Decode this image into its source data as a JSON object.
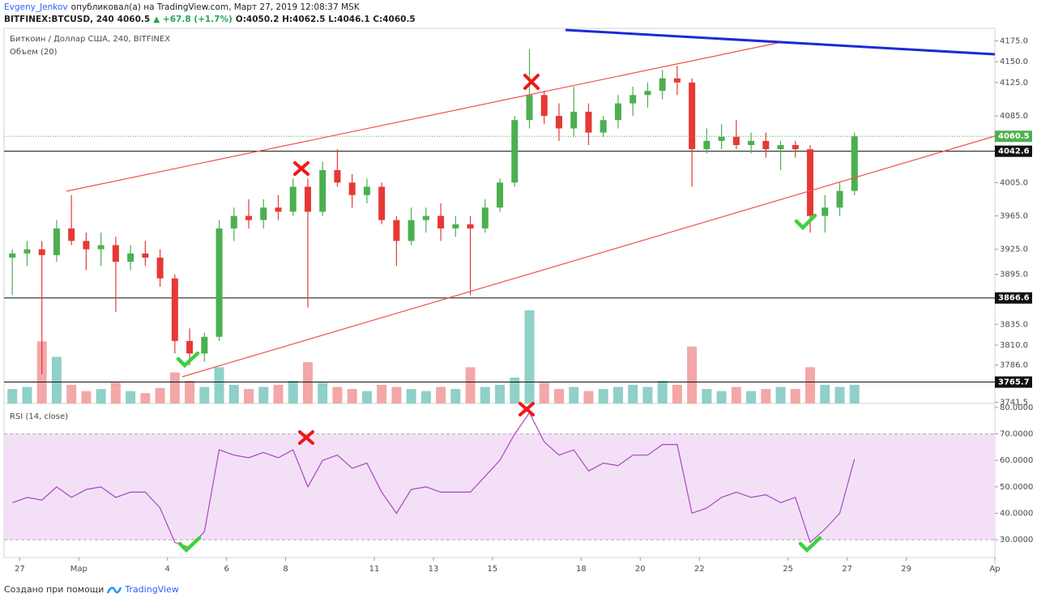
{
  "header": {
    "author": "Evgeny_Jenkov",
    "published": "опубликовал(а) на TradingView.com, Март 27, 2019 12:08:37 MSK",
    "symbol": "BITFINEX:BTCUSD, 240",
    "last": "4060.5",
    "change": "▲ +67.8 (+1.7%)",
    "ohlc": "O:4050.2 H:4062.5 L:4046.1 C:4060.5"
  },
  "chart_data": [
    {
      "type": "candlestick",
      "title": "Биткоин / Доллар США, 240, BITFINEX",
      "volume_label": "Объем (20)",
      "x": [
        -2.25,
        -1.75,
        -1.25,
        -0.75,
        -0.25,
        0.25,
        0.75,
        1.25,
        1.75,
        2.25,
        2.75,
        3.25,
        3.75,
        4.25,
        4.75,
        5.25,
        5.75,
        6.25,
        6.75,
        7.25,
        7.75,
        8.25,
        8.75,
        9.25,
        9.75,
        10.25,
        10.75,
        11.25,
        11.75,
        12.25,
        12.75,
        13.25,
        13.75,
        14.25,
        14.75,
        15.25,
        15.75,
        16.25,
        16.75,
        17.25,
        17.75,
        18.25,
        18.75,
        19.25,
        19.75,
        20.25,
        20.75,
        21.25,
        21.75,
        22.25,
        22.75,
        23.25,
        23.75,
        24.25,
        24.75,
        25.25,
        25.75,
        26.25
      ],
      "open": [
        3915,
        3920,
        3925,
        3918,
        3950,
        3935,
        3925,
        3930,
        3910,
        3920,
        3915,
        3890,
        3815,
        3800,
        3820,
        3950,
        3965,
        3960,
        3975,
        3970,
        4000,
        3970,
        4020,
        4005,
        3990,
        4000,
        3960,
        3935,
        3960,
        3965,
        3950,
        3955,
        3950,
        3975,
        4005,
        4080,
        4110,
        4085,
        4070,
        4090,
        4065,
        4080,
        4100,
        4110,
        4115,
        4130,
        4125,
        4045,
        4055,
        4060,
        4050,
        4055,
        4045,
        4050,
        4045,
        3965,
        3975,
        3995
      ],
      "high": [
        3925,
        3935,
        3935,
        3960,
        3990,
        3945,
        3945,
        3940,
        3930,
        3935,
        3925,
        3895,
        3830,
        3825,
        3960,
        3975,
        3985,
        3985,
        3990,
        4010,
        4010,
        4030,
        4045,
        4015,
        4010,
        4005,
        3965,
        3975,
        3975,
        3980,
        3965,
        3965,
        3985,
        4010,
        4085,
        4165,
        4115,
        4100,
        4120,
        4100,
        4085,
        4110,
        4120,
        4125,
        4140,
        4145,
        4130,
        4070,
        4075,
        4080,
        4065,
        4065,
        4055,
        4055,
        4050,
        3990,
        4005,
        4065
      ],
      "low": [
        3870,
        3905,
        3775,
        3910,
        3930,
        3900,
        3905,
        3850,
        3900,
        3905,
        3880,
        3800,
        3786,
        3790,
        3815,
        3935,
        3950,
        3950,
        3960,
        3965,
        3855,
        3965,
        4000,
        3975,
        3980,
        3955,
        3905,
        3930,
        3945,
        3935,
        3940,
        3870,
        3945,
        3970,
        4000,
        4070,
        4075,
        4055,
        4060,
        4050,
        4060,
        4070,
        4085,
        4095,
        4105,
        4110,
        4000,
        4040,
        4045,
        4045,
        4040,
        4035,
        4020,
        4035,
        3945,
        3945,
        3965,
        3990
      ],
      "close": [
        3920,
        3925,
        3918,
        3950,
        3935,
        3925,
        3930,
        3910,
        3920,
        3915,
        3890,
        3815,
        3800,
        3820,
        3950,
        3965,
        3960,
        3975,
        3970,
        4000,
        3970,
        4020,
        4005,
        3990,
        4000,
        3960,
        3935,
        3960,
        3965,
        3950,
        3955,
        3950,
        3975,
        4005,
        4080,
        4110,
        4085,
        4070,
        4090,
        4065,
        4080,
        4100,
        4110,
        4115,
        4130,
        4125,
        4045,
        4055,
        4060,
        4050,
        4055,
        4045,
        4050,
        4045,
        3965,
        3975,
        3995,
        4060.5
      ],
      "volume": [
        14,
        16,
        60,
        45,
        18,
        12,
        14,
        20,
        12,
        10,
        15,
        30,
        22,
        16,
        35,
        18,
        14,
        16,
        18,
        22,
        40,
        20,
        16,
        14,
        12,
        18,
        16,
        14,
        12,
        16,
        14,
        35,
        16,
        18,
        25,
        90,
        20,
        14,
        16,
        12,
        14,
        16,
        18,
        16,
        22,
        18,
        55,
        14,
        12,
        16,
        12,
        14,
        16,
        14,
        35,
        18,
        16,
        18
      ],
      "up_color": "#4caf50",
      "down_color": "#e53935",
      "volume_up_color": "#8fd0c8",
      "volume_down_color": "#f3a7a7",
      "xlim": [
        -2.53,
        31
      ],
      "xticks": [
        {
          "value": -2,
          "label": "27"
        },
        {
          "value": 0,
          "label": "Мар"
        },
        {
          "value": 3,
          "label": "4"
        },
        {
          "value": 5,
          "label": "6"
        },
        {
          "value": 7,
          "label": "8"
        },
        {
          "value": 10,
          "label": "11"
        },
        {
          "value": 12,
          "label": "13"
        },
        {
          "value": 14,
          "label": "15"
        },
        {
          "value": 17,
          "label": "18"
        },
        {
          "value": 19,
          "label": "20"
        },
        {
          "value": 21,
          "label": "22"
        },
        {
          "value": 24,
          "label": "25"
        },
        {
          "value": 26,
          "label": "27"
        },
        {
          "value": 28,
          "label": "29"
        },
        {
          "value": 31,
          "label": "Ap"
        }
      ],
      "ylim": [
        3740,
        4190
      ],
      "yticks": [
        {
          "value": 4175,
          "label": "4175.0"
        },
        {
          "value": 4150,
          "label": "4150.0"
        },
        {
          "value": 4125,
          "label": "4125.0"
        },
        {
          "value": 4085,
          "label": "4085.0"
        },
        {
          "value": 4005,
          "label": "4005.0"
        },
        {
          "value": 3965,
          "label": "3965.0"
        },
        {
          "value": 3925,
          "label": "3925.0"
        },
        {
          "value": 3895,
          "label": "3895.0"
        },
        {
          "value": 3835,
          "label": "3835.0"
        },
        {
          "value": 3810,
          "label": "3810.0"
        },
        {
          "value": 3786,
          "label": "3786.0"
        },
        3741.5
      ],
      "levels": [
        4042.6,
        3866.6,
        3765.7
      ],
      "last_price": 4060.5,
      "last_color": "#4caf50"
    },
    {
      "type": "line",
      "title": "RSI (14, close)",
      "x": [
        -2.25,
        -1.75,
        -1.25,
        -0.75,
        -0.25,
        0.25,
        0.75,
        1.25,
        1.75,
        2.25,
        2.75,
        3.25,
        3.75,
        4.25,
        4.75,
        5.25,
        5.75,
        6.25,
        6.75,
        7.25,
        7.75,
        8.25,
        8.75,
        9.25,
        9.75,
        10.25,
        10.75,
        11.25,
        11.75,
        12.25,
        12.75,
        13.25,
        13.75,
        14.25,
        14.75,
        15.25,
        15.75,
        16.25,
        16.75,
        17.25,
        17.75,
        18.25,
        18.75,
        19.25,
        19.75,
        20.25,
        20.75,
        21.25,
        21.75,
        22.25,
        22.75,
        23.25,
        23.75,
        24.25,
        24.75,
        25.25,
        25.75,
        26.25
      ],
      "values": [
        44,
        46,
        45,
        50,
        46,
        49,
        50,
        46,
        48,
        48,
        42,
        29,
        27,
        33,
        64,
        62,
        61,
        63,
        61,
        64,
        50,
        60,
        62,
        57,
        59,
        48,
        40,
        49,
        50,
        48,
        48,
        48,
        54,
        60,
        70,
        78,
        67,
        62,
        64,
        56,
        59,
        58,
        62,
        62,
        66,
        66,
        40,
        42,
        46,
        48,
        46,
        47,
        44,
        46,
        29,
        34,
        40,
        60.5
      ],
      "color": "#ab47bc",
      "band": [
        30,
        70
      ],
      "band_color": "#f3e0f7",
      "ylim": [
        23.3,
        80.9
      ],
      "yticks": [
        {
          "value": 80,
          "label": "80.0000"
        },
        {
          "value": 70,
          "label": "70.0000"
        },
        {
          "value": 60,
          "label": "60.0000"
        },
        {
          "value": 50,
          "label": "50.0000"
        },
        {
          "value": 40,
          "label": "40.0000"
        },
        {
          "value": 30,
          "label": "30.0000"
        }
      ]
    }
  ],
  "footer": {
    "created": "Создано при помощи",
    "brand": "TradingView"
  }
}
